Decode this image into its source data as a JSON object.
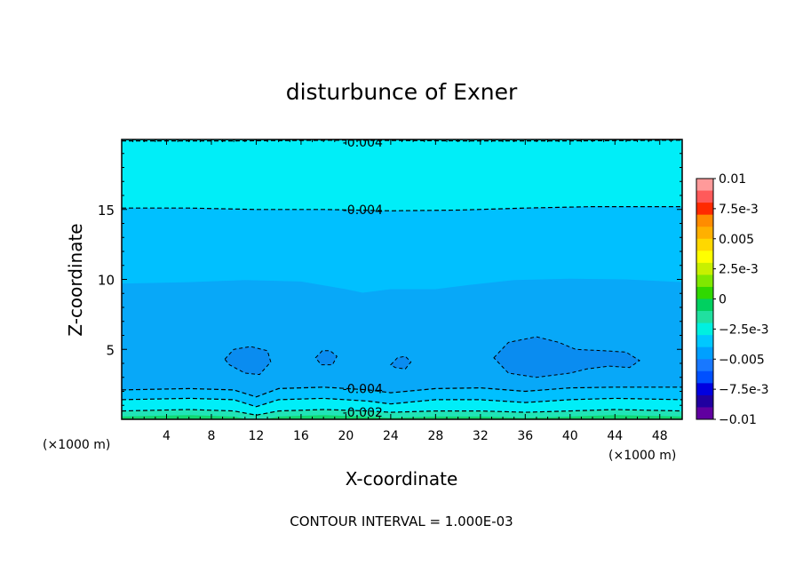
{
  "chart_data": {
    "type": "contour",
    "title": "disturbunce of Exner",
    "xlabel": "X-coordinate",
    "ylabel": "Z-coordinate",
    "x_unit": "(×1000 m)",
    "y_unit": "(×1000 m)",
    "footer": "CONTOUR INTERVAL = 1.000E-03",
    "xlim": [
      0,
      50
    ],
    "ylim": [
      0,
      20
    ],
    "x_ticks": [
      4,
      8,
      12,
      16,
      20,
      24,
      28,
      32,
      36,
      40,
      44,
      48
    ],
    "y_ticks": [
      5,
      10,
      15
    ],
    "colorbar": {
      "labels": [
        "0.01",
        "7.5e-3",
        "0.005",
        "2.5e-3",
        "0",
        "-2.5e-3",
        "-0.005",
        "-7.5e-3",
        "-0.01"
      ],
      "colors": [
        "#ff9a9a",
        "#ff5a5a",
        "#ff2a00",
        "#ff8c00",
        "#ffb000",
        "#ffd800",
        "#ffff00",
        "#c8f000",
        "#80e800",
        "#30d800",
        "#00d060",
        "#20e0a0",
        "#00f0e0",
        "#00c8ff",
        "#00a0ff",
        "#1878ff",
        "#0050ff",
        "#0000e0",
        "#2000a0",
        "#6000a0"
      ]
    },
    "filled_levels": [
      {
        "level": "-0.006",
        "color": "#0a8cf0"
      },
      {
        "level": "-0.005",
        "color": "#08a8f8"
      },
      {
        "level": "-0.004",
        "color": "#00c0ff"
      },
      {
        "level": "-0.003",
        "color": "#00eef8"
      },
      {
        "level": "-0.002",
        "color": "#20e4b8"
      },
      {
        "level": "-0.001",
        "color": "#10d870"
      }
    ],
    "contour_labels": [
      {
        "text": "-0.004",
        "x": 21.5,
        "z": 19.8
      },
      {
        "text": "-0.004",
        "x": 21.5,
        "z": 15.0
      },
      {
        "text": "-0.004",
        "x": 21.5,
        "z": 2.2
      },
      {
        "text": "-0.002",
        "x": 21.5,
        "z": 0.5
      }
    ],
    "contours": [
      {
        "level": -0.004,
        "points": [
          [
            0,
            19.9
          ],
          [
            10,
            19.9
          ],
          [
            20,
            19.95
          ],
          [
            30,
            19.9
          ],
          [
            40,
            19.9
          ],
          [
            50,
            19.95
          ]
        ]
      },
      {
        "level": -0.004,
        "points": [
          [
            0,
            15.1
          ],
          [
            6,
            15.1
          ],
          [
            12,
            15.0
          ],
          [
            18,
            15.0
          ],
          [
            24,
            14.9
          ],
          [
            30,
            14.95
          ],
          [
            36,
            15.1
          ],
          [
            42,
            15.2
          ],
          [
            50,
            15.2
          ]
        ]
      },
      {
        "level": -0.005,
        "points": [
          [
            0,
            9.7
          ],
          [
            6,
            9.8
          ],
          [
            11,
            9.95
          ],
          [
            16,
            9.85
          ],
          [
            20,
            9.3
          ],
          [
            21.5,
            9.05
          ],
          [
            24,
            9.3
          ],
          [
            28,
            9.3
          ],
          [
            31,
            9.6
          ],
          [
            35,
            9.95
          ],
          [
            40,
            10.05
          ],
          [
            45,
            10.0
          ],
          [
            50,
            9.8
          ]
        ]
      },
      {
        "level": -0.004,
        "points": [
          [
            0,
            2.1
          ],
          [
            6,
            2.2
          ],
          [
            10,
            2.1
          ],
          [
            12,
            1.6
          ],
          [
            14,
            2.2
          ],
          [
            18,
            2.3
          ],
          [
            22,
            2.1
          ],
          [
            24,
            1.9
          ],
          [
            28,
            2.2
          ],
          [
            32,
            2.25
          ],
          [
            36,
            2.0
          ],
          [
            40,
            2.25
          ],
          [
            44,
            2.3
          ],
          [
            50,
            2.3
          ]
        ]
      },
      {
        "level": -0.003,
        "points": [
          [
            0,
            1.4
          ],
          [
            6,
            1.5
          ],
          [
            10,
            1.4
          ],
          [
            12,
            0.9
          ],
          [
            14,
            1.4
          ],
          [
            18,
            1.5
          ],
          [
            22,
            1.3
          ],
          [
            24,
            1.1
          ],
          [
            28,
            1.4
          ],
          [
            32,
            1.4
          ],
          [
            36,
            1.2
          ],
          [
            40,
            1.4
          ],
          [
            44,
            1.5
          ],
          [
            50,
            1.4
          ]
        ]
      },
      {
        "level": -0.002,
        "points": [
          [
            0,
            0.6
          ],
          [
            6,
            0.7
          ],
          [
            10,
            0.6
          ],
          [
            12,
            0.3
          ],
          [
            14,
            0.6
          ],
          [
            18,
            0.7
          ],
          [
            22,
            0.6
          ],
          [
            24,
            0.5
          ],
          [
            28,
            0.6
          ],
          [
            32,
            0.6
          ],
          [
            36,
            0.5
          ],
          [
            40,
            0.6
          ],
          [
            44,
            0.7
          ],
          [
            50,
            0.6
          ]
        ]
      }
    ],
    "closed_contours": [
      {
        "level": -0.006,
        "points": [
          [
            9.2,
            4.3
          ],
          [
            10.0,
            5.0
          ],
          [
            11.5,
            5.2
          ],
          [
            13.0,
            4.9
          ],
          [
            13.3,
            4.1
          ],
          [
            12.3,
            3.2
          ],
          [
            11.0,
            3.3
          ],
          [
            9.6,
            3.9
          ]
        ]
      },
      {
        "level": -0.006,
        "points": [
          [
            17.3,
            4.4
          ],
          [
            17.9,
            4.9
          ],
          [
            18.6,
            4.9
          ],
          [
            19.2,
            4.5
          ],
          [
            18.8,
            3.9
          ],
          [
            17.8,
            3.9
          ]
        ]
      },
      {
        "level": -0.006,
        "points": [
          [
            24.0,
            3.9
          ],
          [
            24.6,
            4.4
          ],
          [
            25.3,
            4.5
          ],
          [
            25.8,
            4.1
          ],
          [
            25.3,
            3.6
          ],
          [
            24.4,
            3.7
          ]
        ]
      },
      {
        "level": -0.006,
        "points": [
          [
            33.2,
            4.4
          ],
          [
            34.5,
            5.5
          ],
          [
            37.0,
            5.9
          ],
          [
            39.0,
            5.5
          ],
          [
            40.5,
            5.0
          ],
          [
            43.0,
            4.9
          ],
          [
            45.0,
            4.8
          ],
          [
            46.2,
            4.2
          ],
          [
            45.3,
            3.7
          ],
          [
            43.5,
            3.8
          ],
          [
            41.5,
            3.6
          ],
          [
            40.0,
            3.3
          ],
          [
            37.0,
            3.0
          ],
          [
            34.5,
            3.3
          ]
        ]
      }
    ]
  }
}
